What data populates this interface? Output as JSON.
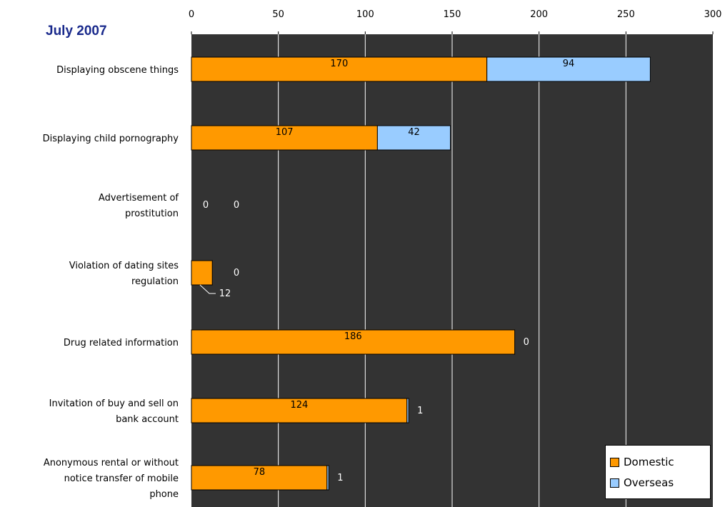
{
  "chart_data": {
    "type": "bar",
    "orientation": "horizontal",
    "stacked": true,
    "title": "July 2007",
    "categories": [
      "Displaying obscene things",
      "Displaying child pornography",
      "Advertisement of prostitution",
      "Violation of dating sites regulation",
      "Drug related information",
      "Invitation of buy and sell on bank account",
      "Anonymous rental or without notice transfer of mobile phone"
    ],
    "category_lines": [
      [
        "Displaying obscene things"
      ],
      [
        "Displaying child pornography"
      ],
      [
        "Advertisement of",
        "prostitution"
      ],
      [
        "Violation of dating sites",
        "regulation"
      ],
      [
        "Drug related information"
      ],
      [
        "Invitation of buy and sell on",
        "bank account"
      ],
      [
        "Anonymous rental or without",
        "notice transfer of mobile",
        "phone"
      ]
    ],
    "series": [
      {
        "name": "Domestic",
        "values": [
          170,
          107,
          0,
          12,
          186,
          124,
          78
        ],
        "color": "#ff9900"
      },
      {
        "name": "Overseas",
        "values": [
          94,
          42,
          0,
          0,
          0,
          1,
          1
        ],
        "color": "#99ccff"
      }
    ],
    "xlim": [
      0,
      300
    ],
    "xticks": [
      "0",
      "50",
      "100",
      "150",
      "200",
      "250",
      "300"
    ],
    "xaxis_position": "top",
    "grid": true,
    "plot_background": "#333333",
    "legend_position": "bottom-right"
  }
}
